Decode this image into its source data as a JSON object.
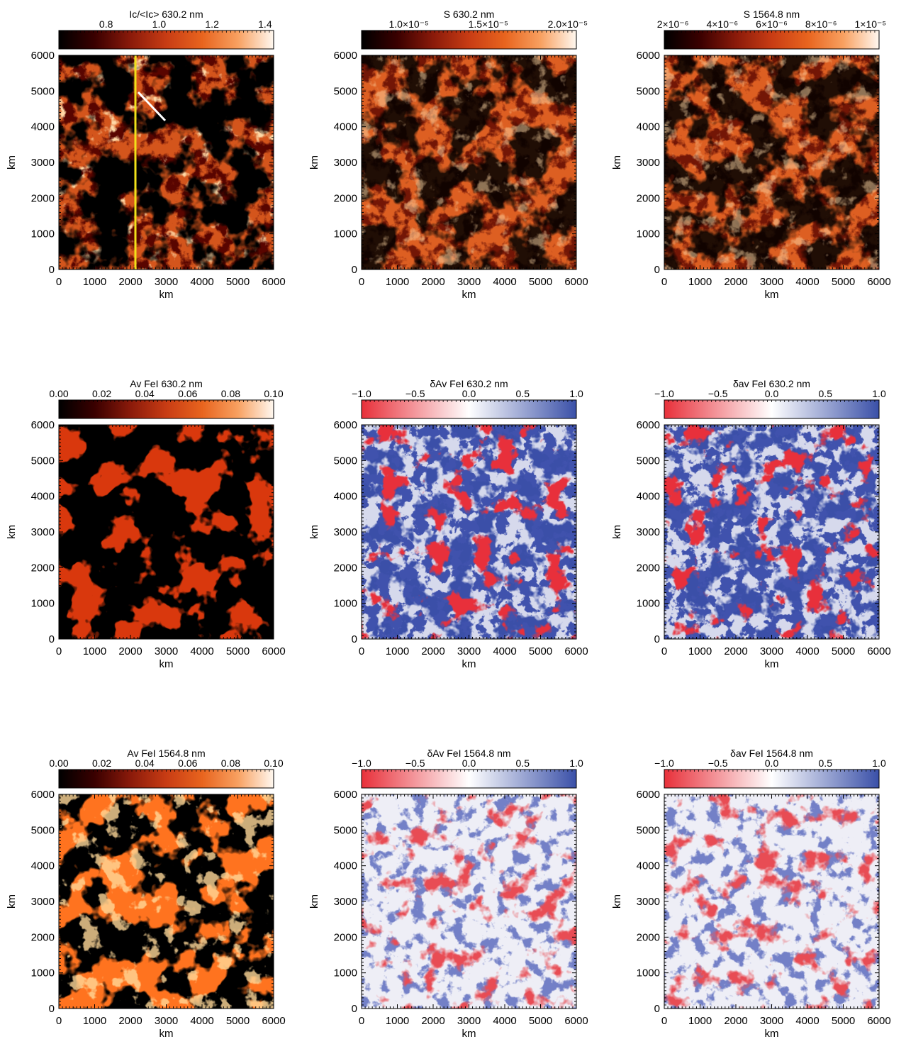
{
  "figure": {
    "axis_label": "km",
    "ticks": [
      "0",
      "1000",
      "2000",
      "3000",
      "4000",
      "5000",
      "6000"
    ],
    "panels": [
      {
        "id": "ic-630",
        "colorbar_title": "Ic/<Ic> 630.2 nm",
        "colorbar_ticks": [
          "0.8",
          "1.0",
          "1.2",
          "1.4"
        ],
        "colormap": "heat",
        "content": "granulation",
        "overlays": [
          "yellow-vertical-line",
          "white-diagonal-line"
        ]
      },
      {
        "id": "s-630",
        "colorbar_title": "S 630.2 nm",
        "colorbar_ticks": [
          "1.0×10⁻⁵",
          "1.5×10⁻⁵",
          "2.0×10⁻⁵"
        ],
        "colormap": "heat",
        "content": "granulation-bright"
      },
      {
        "id": "s-1564",
        "colorbar_title": "S 1564.8 nm",
        "colorbar_ticks": [
          "2×10⁻⁶",
          "4×10⁻⁶",
          "6×10⁻⁶",
          "8×10⁻⁶",
          "1×10⁻⁵"
        ],
        "colormap": "heat",
        "content": "granulation-bright"
      },
      {
        "id": "av-630",
        "colorbar_title": "Av FeI 630.2 nm",
        "colorbar_ticks": [
          "0.00",
          "0.02",
          "0.04",
          "0.06",
          "0.08",
          "0.10"
        ],
        "colormap": "heat",
        "content": "network-thin"
      },
      {
        "id": "dav-630",
        "colorbar_title": "δAv FeI 630.2 nm",
        "colorbar_ticks": [
          "−1.0",
          "−0.5",
          "0.0",
          "0.5",
          "1.0"
        ],
        "colormap": "diverging",
        "content": "diverging-strong"
      },
      {
        "id": "dav2-630",
        "colorbar_title": "δav FeI 630.2 nm",
        "colorbar_ticks": [
          "−1.0",
          "−0.5",
          "0.0",
          "0.5",
          "1.0"
        ],
        "colormap": "diverging",
        "content": "diverging-strong"
      },
      {
        "id": "av-1564",
        "colorbar_title": "Av FeI 1564.8 nm",
        "colorbar_ticks": [
          "0.00",
          "0.02",
          "0.04",
          "0.06",
          "0.08",
          "0.10"
        ],
        "colormap": "heat",
        "content": "network-bright"
      },
      {
        "id": "dav-1564",
        "colorbar_title": "δAv FeI 1564.8 nm",
        "colorbar_ticks": [
          "−1.0",
          "−0.5",
          "0.0",
          "0.5",
          "1.0"
        ],
        "colormap": "diverging",
        "content": "diverging-faint"
      },
      {
        "id": "dav2-1564",
        "colorbar_title": "δav FeI 1564.8 nm",
        "colorbar_ticks": [
          "−1.0",
          "−0.5",
          "0.0",
          "0.5",
          "1.0"
        ],
        "colormap": "diverging",
        "content": "diverging-faint"
      }
    ]
  },
  "colors": {
    "heat_stops": [
      "#000000",
      "#3a0000",
      "#8a1a0a",
      "#c83c14",
      "#e8641e",
      "#f8a060",
      "#fff8f0"
    ],
    "diverging_stops": [
      "#e8303a",
      "#ffffff",
      "#3a50a8"
    ],
    "yellow_line": "#f2e21a",
    "white_line": "#ffffff"
  }
}
